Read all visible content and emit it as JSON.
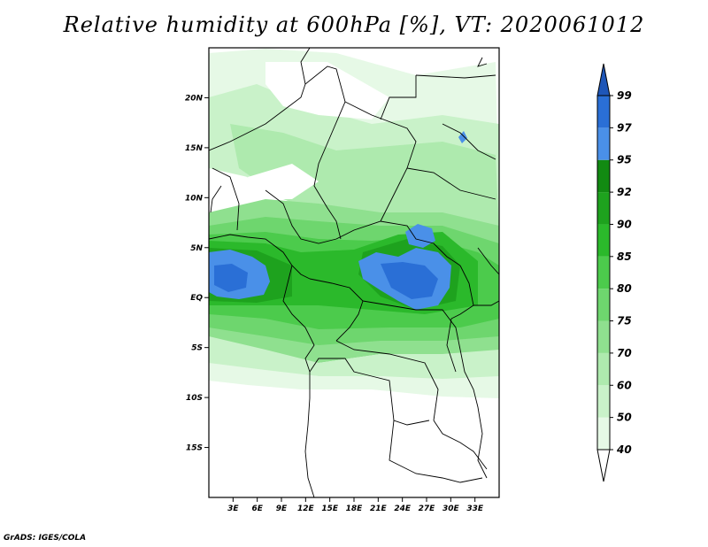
{
  "title": "Relative humidity at 600hPa [%], VT: 2020061012",
  "credit": "GrADS: IGES/COLA",
  "map": {
    "lon_range": [
      0,
      36
    ],
    "lat_range": [
      -20,
      25
    ],
    "lon_ticks": [
      {
        "value": 3,
        "label": "3E"
      },
      {
        "value": 6,
        "label": "6E"
      },
      {
        "value": 9,
        "label": "9E"
      },
      {
        "value": 12,
        "label": "12E"
      },
      {
        "value": 15,
        "label": "15E"
      },
      {
        "value": 18,
        "label": "18E"
      },
      {
        "value": 21,
        "label": "21E"
      },
      {
        "value": 24,
        "label": "24E"
      },
      {
        "value": 27,
        "label": "27E"
      },
      {
        "value": 30,
        "label": "30E"
      },
      {
        "value": 33,
        "label": "33E"
      }
    ],
    "lat_ticks": [
      {
        "value": 20,
        "label": "20N"
      },
      {
        "value": 15,
        "label": "15N"
      },
      {
        "value": 10,
        "label": "10N"
      },
      {
        "value": 5,
        "label": "5N"
      },
      {
        "value": 0,
        "label": "EQ"
      },
      {
        "value": -5,
        "label": "5S"
      },
      {
        "value": -10,
        "label": "10S"
      },
      {
        "value": -15,
        "label": "15S"
      }
    ]
  },
  "colorbar": {
    "levels": [
      "40",
      "50",
      "60",
      "70",
      "75",
      "80",
      "85",
      "90",
      "92",
      "95",
      "97",
      "99"
    ],
    "colors": [
      "#ffffff",
      "#e6f9e6",
      "#c9f2c9",
      "#aeeaae",
      "#8fe08f",
      "#6ed66e",
      "#4ccb4c",
      "#2bb92b",
      "#1ea21e",
      "#128a12",
      "#4a90e8",
      "#2a6fd6",
      "#1e56b8"
    ]
  }
}
